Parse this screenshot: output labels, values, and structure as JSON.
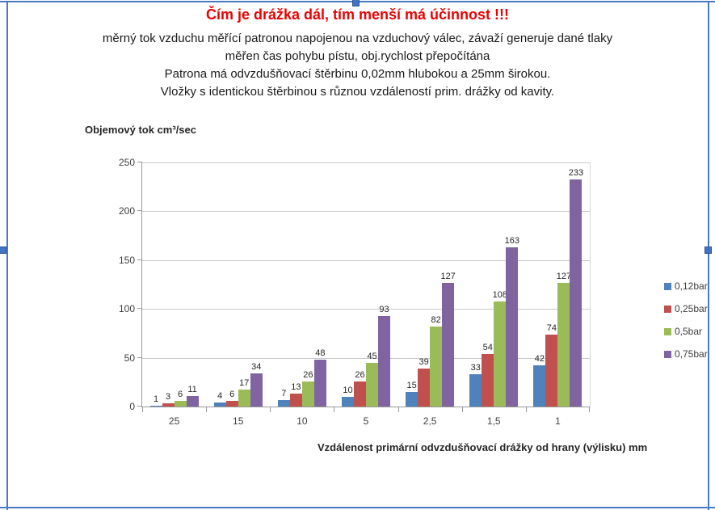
{
  "selection_frame": {
    "color": "#4879c5"
  },
  "chart_data": {
    "type": "bar",
    "title": "Čím je drážka dál, tím menší má účinnost !!!",
    "title_color": "#ee0000",
    "subtitle_lines": [
      "měrný tok vzduchu měřící patronou  napojenou na vzduchový válec, závaží generuje dané tlaky",
      "měřen čas pohybu pístu,  obj.rychlost přepočítána",
      "Patrona má odvzdušňovací štěrbinu 0,02mm hlubokou a 25mm širokou.",
      "Vložky s identickou štěrbinou s různou vzdáleností prim. drážky od kavity."
    ],
    "ylabel": "Objemový tok cm³/sec",
    "xlabel": "Vzdálenost primární  odvzdušňovací drážky od hrany (výlisku)  mm",
    "categories": [
      "25",
      "15",
      "10",
      "5",
      "2,5",
      "1,5",
      "1"
    ],
    "series": [
      {
        "name": "0,12bar",
        "color": "#4F81BD",
        "values": [
          1,
          4,
          7,
          10,
          15,
          33,
          42
        ]
      },
      {
        "name": "0,25bar",
        "color": "#C0504D",
        "values": [
          3,
          6,
          13,
          26,
          39,
          54,
          74
        ]
      },
      {
        "name": "0,5bar",
        "color": "#9BBB59",
        "values": [
          6,
          17,
          26,
          45,
          82,
          108,
          127
        ]
      },
      {
        "name": "0,75bar",
        "color": "#8064A2",
        "values": [
          11,
          34,
          48,
          93,
          127,
          163,
          233
        ]
      }
    ],
    "ylim": [
      0,
      250
    ],
    "yticks": [
      0,
      50,
      100,
      150,
      200,
      250
    ],
    "grid": true,
    "legend_position": "right",
    "data_labels": true
  }
}
